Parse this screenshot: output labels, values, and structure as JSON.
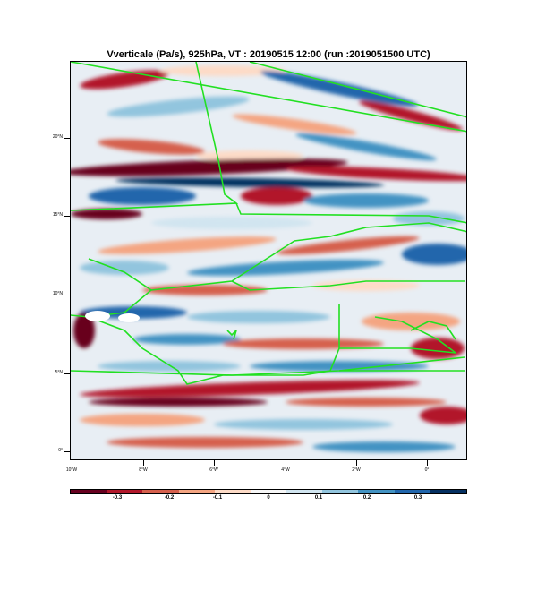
{
  "title": "Vverticale (Pa/s), 925hPa, VT : 20190515  12:00 (run :2019051500 UTC)",
  "map": {
    "y_ticks": [
      "20°N",
      "15°N",
      "10°N",
      "5°N",
      "0°"
    ],
    "x_ticks": [
      "10°W",
      "8°W",
      "6°W",
      "4°W",
      "2°W",
      "0°"
    ],
    "border_color": "#22e022"
  },
  "colorbar": {
    "labels": [
      "-0.3",
      "-0.2",
      "-0.1",
      "0",
      "0.1",
      "0.2",
      "0.3"
    ],
    "colors": [
      "#67001f",
      "#b2182b",
      "#d6604d",
      "#f4a582",
      "#fddbc7",
      "#f7f7f7",
      "#d1e5f0",
      "#92c5de",
      "#4393c3",
      "#2166ac",
      "#053061"
    ]
  }
}
